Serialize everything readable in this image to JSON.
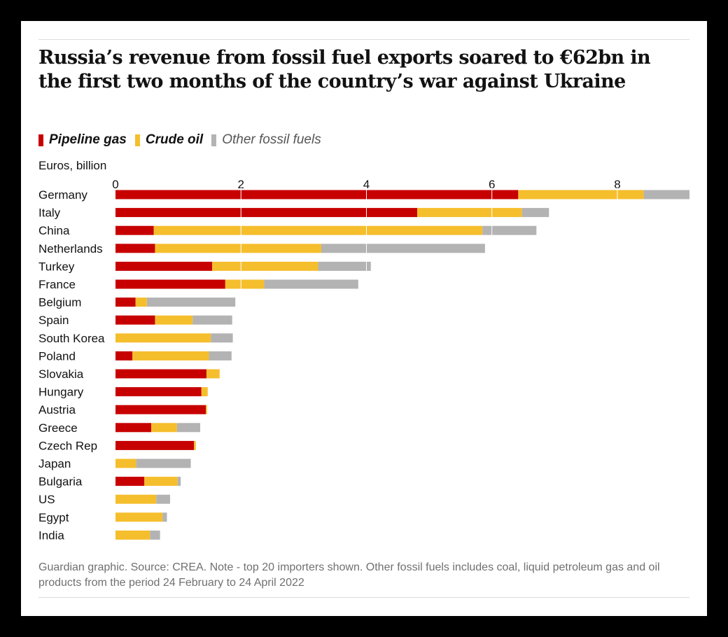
{
  "title": "Russia’s revenue from fossil fuel exports soared to €62bn in the first two months of the country’s war against Ukraine",
  "legend": [
    {
      "label": "Pipeline gas",
      "color": "#c70000",
      "style": "bold"
    },
    {
      "label": "Crude oil",
      "color": "#f5be2c",
      "style": "bold"
    },
    {
      "label": "Other fossil fuels",
      "color": "#b3b3b4",
      "style": "muted"
    }
  ],
  "unit_label": "Euros, billion",
  "footnote": "Guardian graphic. Source: CREA. Note - top 20 importers shown. Other fossil fuels includes coal, liquid petroleum gas and oil products from the period 24 February to 24 April 2022",
  "chart_data": {
    "type": "bar",
    "orientation": "horizontal",
    "stacked": true,
    "xlim": [
      0,
      9.15
    ],
    "xticks": [
      "0",
      "2",
      "4",
      "6",
      "8"
    ],
    "xtick_values": [
      0,
      2,
      4,
      6,
      8
    ],
    "grid": "vertical gridlines, white",
    "categories": [
      "Germany",
      "Italy",
      "China",
      "Netherlands",
      "Turkey",
      "France",
      "Belgium",
      "Spain",
      "South Korea",
      "Poland",
      "Slovakia",
      "Hungary",
      "Austria",
      "Greece",
      "Czech Rep",
      "Japan",
      "Bulgaria",
      "US",
      "Egypt",
      "India"
    ],
    "series": [
      {
        "name": "Pipeline gas",
        "color": "#c70000",
        "values": [
          6.42,
          4.81,
          0.61,
          0.63,
          1.54,
          1.75,
          0.32,
          0.63,
          0,
          0.27,
          1.45,
          1.37,
          1.44,
          0.57,
          1.25,
          0,
          0.46,
          0,
          0,
          0
        ]
      },
      {
        "name": "Crude oil",
        "color": "#f5be2c",
        "values": [
          2.0,
          1.67,
          5.24,
          2.65,
          1.69,
          0.62,
          0.18,
          0.6,
          1.52,
          1.22,
          0.21,
          0.1,
          0.02,
          0.41,
          0.03,
          0.33,
          0.53,
          0.65,
          0.75,
          0.55
        ]
      },
      {
        "name": "Other fossil fuels",
        "color": "#b3b3b4",
        "values": [
          0.73,
          0.43,
          0.86,
          2.61,
          0.84,
          1.5,
          1.41,
          0.63,
          0.35,
          0.36,
          0,
          0,
          0,
          0.37,
          0,
          0.87,
          0.05,
          0.22,
          0.07,
          0.16
        ]
      }
    ]
  }
}
